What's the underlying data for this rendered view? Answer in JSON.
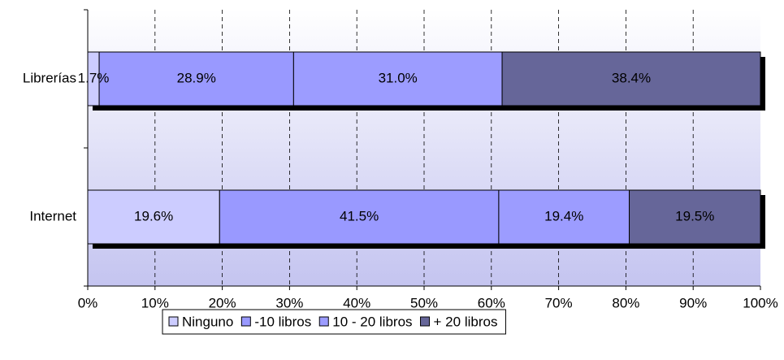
{
  "chart_data": {
    "type": "stacked-bar-horizontal",
    "categories": [
      "Librerías",
      "Internet"
    ],
    "series": [
      {
        "name": "Ninguno",
        "color": "#ccccff",
        "values": [
          1.7,
          19.6
        ],
        "value_labels": [
          "1.7%",
          "19.6%"
        ]
      },
      {
        "name": "-10 libros",
        "color": "#9999ff",
        "values": [
          28.9,
          41.5
        ],
        "value_labels": [
          "28.9%",
          "41.5%"
        ]
      },
      {
        "name": "10 - 20 libros",
        "color": "#9c9cff",
        "values": [
          31.0,
          19.4
        ],
        "value_labels": [
          "31.0%",
          "19.4%"
        ]
      },
      {
        "name": "+ 20 libros",
        "color": "#666699",
        "values": [
          38.4,
          19.5
        ],
        "value_labels": [
          "38.4%",
          "19.5%"
        ]
      }
    ],
    "xlim": [
      0,
      100
    ],
    "xticks": [
      {
        "value": 0,
        "label": "0%"
      },
      {
        "value": 10,
        "label": "10%"
      },
      {
        "value": 20,
        "label": "20%"
      },
      {
        "value": 30,
        "label": "30%"
      },
      {
        "value": 40,
        "label": "40%"
      },
      {
        "value": 50,
        "label": "50%"
      },
      {
        "value": 60,
        "label": "60%"
      },
      {
        "value": 70,
        "label": "70%"
      },
      {
        "value": 80,
        "label": "80%"
      },
      {
        "value": 90,
        "label": "90%"
      },
      {
        "value": 100,
        "label": "100%"
      }
    ],
    "grid": true,
    "legend": "bottom"
  }
}
